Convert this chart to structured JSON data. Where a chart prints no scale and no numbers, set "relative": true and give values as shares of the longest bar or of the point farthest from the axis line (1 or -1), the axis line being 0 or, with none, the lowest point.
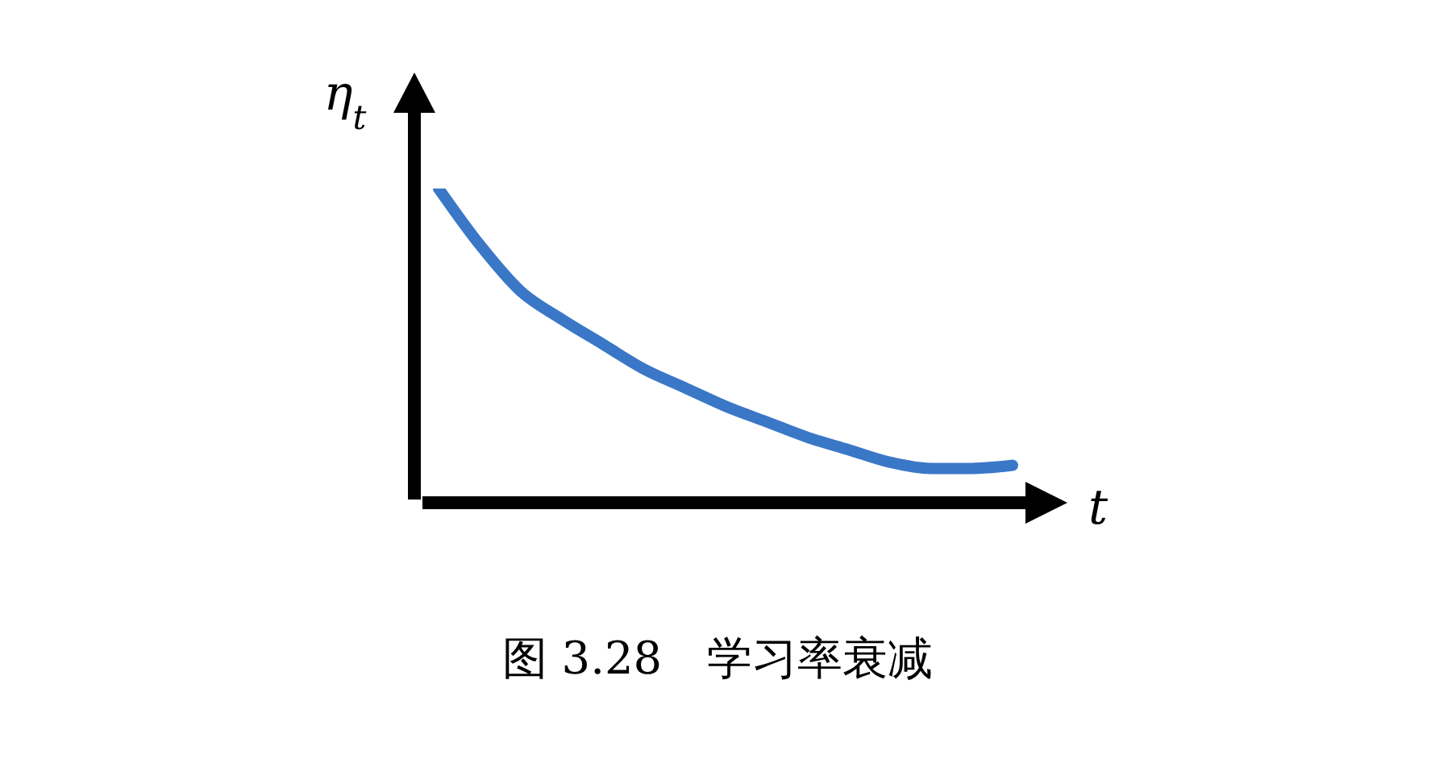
{
  "chart_data": {
    "type": "line",
    "relative": true,
    "xlabel": "t",
    "ylabel": "η$_{t}$",
    "categories": [
      null,
      null,
      null,
      null,
      null,
      null,
      null,
      null,
      null,
      null,
      null,
      null,
      null,
      null,
      null
    ],
    "series": [
      {
        "color": "#3a77c7",
        "values": [
          1,
          0.82,
          0.67,
          0.58,
          0.5,
          0.42,
          0.36,
          0.3,
          0.25,
          0.2,
          0.16,
          0.12,
          0.1,
          0.1,
          0.11
        ]
      }
    ],
    "marker": "none",
    "line_style": "solid",
    "grid": false,
    "legend": false,
    "annotations": [
      "图 3.28　学习率衰减"
    ]
  }
}
